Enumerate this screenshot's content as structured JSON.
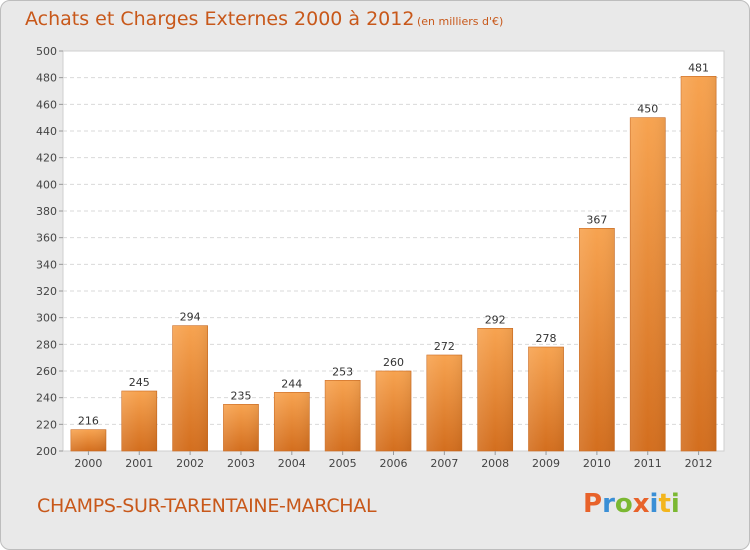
{
  "header": {
    "title": "Achats et Charges Externes 2000 à 2012",
    "subtitle": "(en milliers d'€)"
  },
  "footer": {
    "town": "CHAMPS-SUR-TARENTAINE-MARCHAL",
    "logo": "Proxiti",
    "logo_colors": [
      "#e8622a",
      "#3a8fd6",
      "#7bb832",
      "#e8622a",
      "#3a8fd6",
      "#f3b51c",
      "#7bb832"
    ]
  },
  "chart_data": {
    "type": "bar",
    "categories": [
      "2000",
      "2001",
      "2002",
      "2003",
      "2004",
      "2005",
      "2006",
      "2007",
      "2008",
      "2009",
      "2010",
      "2011",
      "2012"
    ],
    "values": [
      216,
      245,
      294,
      235,
      244,
      253,
      260,
      272,
      292,
      278,
      367,
      450,
      481
    ],
    "title": "Achats et Charges Externes 2000 à 2012",
    "subtitle": "(en milliers d'€)",
    "xlabel": "",
    "ylabel": "",
    "ylim": [
      200,
      500
    ],
    "yticks": [
      200,
      220,
      240,
      260,
      280,
      300,
      320,
      340,
      360,
      380,
      400,
      420,
      440,
      460,
      480,
      500
    ],
    "grid": true,
    "bar_color": "#f0923c"
  }
}
